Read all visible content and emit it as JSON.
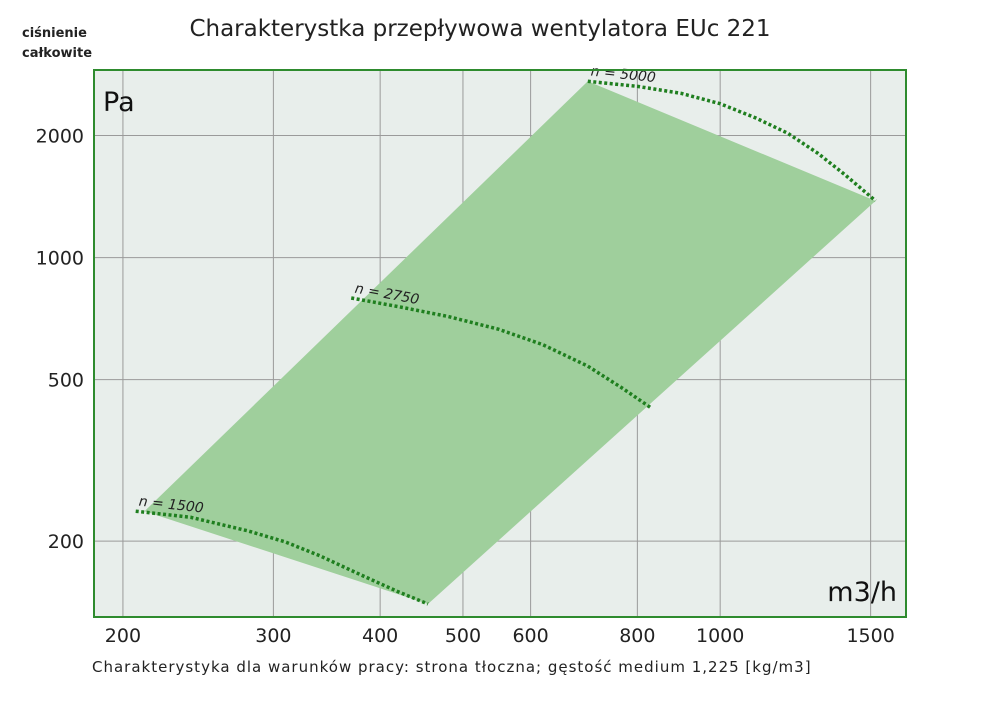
{
  "title": "Charakterystka przepływowa wentylatora EUc 221",
  "corner_label": [
    "ciśnienie",
    "całkowite"
  ],
  "footer": "Charakterystyka dla warunków pracy: strona tłoczna; gęstość medium 1,225 [kg/m3]",
  "colors": {
    "plot_bg": "#e8eeeb",
    "frame": "#2e8b2e",
    "grid": "#9a9a9a",
    "region": "#9fcf9c",
    "curve": "#1f7f1f"
  },
  "chart_data": {
    "type": "line",
    "x_scale": "log",
    "y_scale": "log",
    "xlabel": "m3/h",
    "ylabel": "Pa",
    "xlim": [
      185,
      1650
    ],
    "ylim": [
      130,
      2900
    ],
    "x_ticks": [
      200,
      300,
      400,
      500,
      600,
      800,
      1000,
      1500
    ],
    "y_ticks": [
      200,
      500,
      1000,
      2000
    ],
    "grid": true,
    "operating_region": {
      "x": [
        212,
        700,
        1520,
        455
      ],
      "y": [
        237,
        2720,
        1380,
        140
      ]
    },
    "series": [
      {
        "name": "n = 1500",
        "x": [
          207,
          240,
          280,
          310,
          340,
          380,
          420,
          455
        ],
        "y": [
          237,
          229,
          212,
          199,
          184,
          165,
          150,
          140
        ]
      },
      {
        "name": "n = 2750",
        "x": [
          370,
          420,
          480,
          550,
          620,
          700,
          770,
          830
        ],
        "y": [
          795,
          757,
          716,
          666,
          610,
          540,
          475,
          426
        ]
      },
      {
        "name": "n = 5000",
        "x": [
          700,
          800,
          900,
          1000,
          1100,
          1200,
          1300,
          1400,
          1520
        ],
        "y": [
          2720,
          2643,
          2540,
          2395,
          2210,
          2025,
          1810,
          1600,
          1380
        ]
      }
    ]
  }
}
